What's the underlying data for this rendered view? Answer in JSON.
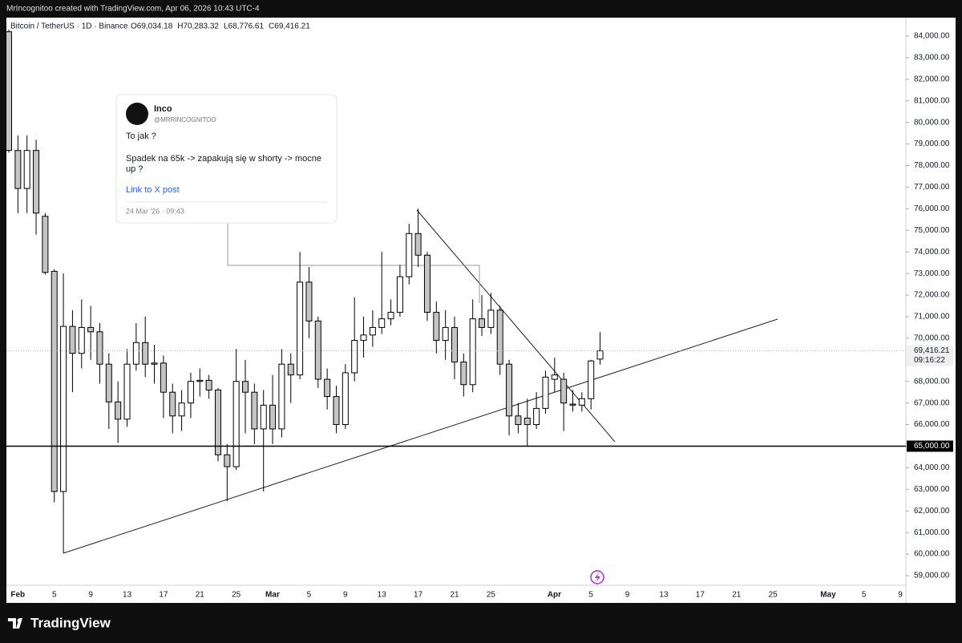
{
  "header": {
    "attribution": "MrIncognitoo created with TradingView.com, Apr 06, 2026 10:43 UTC-4",
    "brand": "TradingView"
  },
  "tweet": {
    "name": "Inco",
    "handle": "@MRRINCOGNITOO",
    "line1": "To jak ?",
    "line2": "Spadek na 65k -> zapakują się w shorty -> mocne",
    "line3": "up ?",
    "link": "Link to X post",
    "timestamp": "24 Mar '26 · 09:43"
  },
  "chart_data": {
    "type": "candlestick",
    "title": "Bitcoin / TetherUS · 1D · Binance",
    "ohlc_labels": [
      "O69,034.18",
      "H70,283.32",
      "L68,776.61",
      "C69,416.21"
    ],
    "up_color": "#ffffff",
    "down_color": "#c4c4c4",
    "wick_color": "#000000",
    "x": [
      "2026-01-31",
      "2026-02-01",
      "2026-02-02",
      "2026-02-03",
      "2026-02-04",
      "2026-02-05",
      "2026-02-06",
      "2026-02-07",
      "2026-02-08",
      "2026-02-09",
      "2026-02-10",
      "2026-02-11",
      "2026-02-12",
      "2026-02-13",
      "2026-02-14",
      "2026-02-15",
      "2026-02-16",
      "2026-02-17",
      "2026-02-18",
      "2026-02-19",
      "2026-02-20",
      "2026-02-21",
      "2026-02-22",
      "2026-02-23",
      "2026-02-24",
      "2026-02-25",
      "2026-02-26",
      "2026-02-27",
      "2026-02-28",
      "2026-03-01",
      "2026-03-02",
      "2026-03-03",
      "2026-03-04",
      "2026-03-05",
      "2026-03-06",
      "2026-03-07",
      "2026-03-08",
      "2026-03-09",
      "2026-03-10",
      "2026-03-11",
      "2026-03-12",
      "2026-03-13",
      "2026-03-14",
      "2026-03-15",
      "2026-03-16",
      "2026-03-17",
      "2026-03-18",
      "2026-03-19",
      "2026-03-20",
      "2026-03-21",
      "2026-03-22",
      "2026-03-23",
      "2026-03-24",
      "2026-03-25",
      "2026-03-26",
      "2026-03-27",
      "2026-03-28",
      "2026-03-29",
      "2026-03-30",
      "2026-03-31",
      "2026-04-01",
      "2026-04-02",
      "2026-04-03",
      "2026-04-04",
      "2026-04-05",
      "2026-04-06"
    ],
    "open": [
      84200,
      78700,
      76940,
      78700,
      75650,
      73100,
      62900,
      70550,
      69300,
      70500,
      70300,
      68800,
      67050,
      66250,
      68800,
      69800,
      68800,
      68850,
      67500,
      66400,
      67000,
      68000,
      68050,
      67600,
      64600,
      64050,
      68000,
      67500,
      65800,
      66900,
      65800,
      68800,
      68300,
      72600,
      70800,
      68100,
      67300,
      66000,
      68400,
      69900,
      70150,
      70500,
      70900,
      71200,
      72850,
      74850,
      73850,
      71200,
      69900,
      70500,
      68900,
      67850,
      70900,
      70500,
      71300,
      68800,
      66400,
      66300,
      66000,
      66750,
      68100,
      68100,
      66950,
      66900,
      67200,
      69034.18
    ],
    "high": [
      84300,
      79400,
      79400,
      79200,
      75800,
      73200,
      73000,
      71300,
      71800,
      71500,
      70700,
      69300,
      68000,
      69500,
      70700,
      71000,
      69700,
      69200,
      67900,
      67600,
      68400,
      68600,
      68300,
      67700,
      65100,
      69500,
      69000,
      67900,
      67600,
      68300,
      69500,
      69300,
      74000,
      73300,
      71000,
      68600,
      67800,
      68800,
      71900,
      71000,
      71300,
      74000,
      71800,
      73400,
      75300,
      76000,
      74000,
      71700,
      71300,
      71000,
      69300,
      71800,
      72000,
      72100,
      71500,
      69000,
      67000,
      67200,
      67500,
      68500,
      69100,
      68400,
      67600,
      67500,
      69000,
      70283.32
    ],
    "low": [
      78600,
      75800,
      75800,
      74800,
      72950,
      62400,
      60050,
      67500,
      68600,
      69000,
      67900,
      65800,
      65150,
      65900,
      68500,
      68200,
      67900,
      66300,
      65600,
      65700,
      66300,
      67300,
      67200,
      64300,
      62450,
      63900,
      65600,
      65100,
      62900,
      65100,
      65400,
      67000,
      68100,
      70000,
      67700,
      66700,
      65600,
      65800,
      68000,
      69100,
      69600,
      70200,
      70600,
      71000,
      72500,
      73300,
      70800,
      69300,
      69000,
      68100,
      67300,
      67500,
      70100,
      70200,
      68300,
      65500,
      65600,
      65000,
      65800,
      66500,
      67500,
      65700,
      66600,
      66600,
      66700,
      68776.61
    ],
    "close": [
      78700,
      76940,
      78700,
      75800,
      73050,
      62900,
      70550,
      69300,
      70500,
      70300,
      68800,
      67050,
      66250,
      68800,
      69800,
      68800,
      68850,
      67500,
      66400,
      67000,
      68000,
      68050,
      67600,
      64600,
      64050,
      68000,
      67500,
      65800,
      66900,
      65800,
      68800,
      68300,
      72600,
      70800,
      68100,
      67300,
      66000,
      68400,
      69900,
      70150,
      70500,
      70900,
      71200,
      72850,
      74850,
      73850,
      71200,
      69900,
      70500,
      68900,
      67850,
      70900,
      70500,
      71300,
      68800,
      66400,
      66000,
      66000,
      66750,
      68200,
      68300,
      67000,
      66900,
      67200,
      68950,
      69416.21
    ],
    "xlim": [
      "2026-01-31",
      "2026-05-09"
    ],
    "xticks": [
      {
        "value": "2026-02-01",
        "label": "Feb"
      },
      {
        "value": "2026-02-05",
        "label": "5"
      },
      {
        "value": "2026-02-09",
        "label": "9"
      },
      {
        "value": "2026-02-13",
        "label": "13"
      },
      {
        "value": "2026-02-17",
        "label": "17"
      },
      {
        "value": "2026-02-21",
        "label": "21"
      },
      {
        "value": "2026-02-25",
        "label": "25"
      },
      {
        "value": "2026-03-01",
        "label": "Mar"
      },
      {
        "value": "2026-03-05",
        "label": "5"
      },
      {
        "value": "2026-03-09",
        "label": "9"
      },
      {
        "value": "2026-03-13",
        "label": "13"
      },
      {
        "value": "2026-03-17",
        "label": "17"
      },
      {
        "value": "2026-03-21",
        "label": "21"
      },
      {
        "value": "2026-03-25",
        "label": "25"
      },
      {
        "value": "2026-04-01",
        "label": "Apr"
      },
      {
        "value": "2026-04-05",
        "label": "5"
      },
      {
        "value": "2026-04-09",
        "label": "9"
      },
      {
        "value": "2026-04-13",
        "label": "13"
      },
      {
        "value": "2026-04-17",
        "label": "17"
      },
      {
        "value": "2026-04-21",
        "label": "21"
      },
      {
        "value": "2026-04-25",
        "label": "25"
      },
      {
        "value": "2026-05-01",
        "label": "May"
      },
      {
        "value": "2026-05-05",
        "label": "5"
      },
      {
        "value": "2026-05-09",
        "label": "9"
      }
    ],
    "ylim": [
      58555,
      84854
    ],
    "yticks": [
      {
        "value": 59000,
        "label": "59,000.00"
      },
      {
        "value": 60000,
        "label": "60,000.00"
      },
      {
        "value": 61000,
        "label": "61,000.00"
      },
      {
        "value": 62000,
        "label": "62,000.00"
      },
      {
        "value": 63000,
        "label": "63,000.00"
      },
      {
        "value": 64000,
        "label": "64,000.00"
      },
      {
        "value": 66000,
        "label": "66,000.00"
      },
      {
        "value": 67000,
        "label": "67,000.00"
      },
      {
        "value": 68000,
        "label": "68,000.00"
      },
      {
        "value": 70000,
        "label": "70,000.00"
      },
      {
        "value": 71000,
        "label": "71,000.00"
      },
      {
        "value": 72000,
        "label": "72,000.00"
      },
      {
        "value": 73000,
        "label": "73,000.00"
      },
      {
        "value": 74000,
        "label": "74,000.00"
      },
      {
        "value": 75000,
        "label": "75,000.00"
      },
      {
        "value": 76000,
        "label": "76,000.00"
      },
      {
        "value": 77000,
        "label": "77,000.00"
      },
      {
        "value": 78000,
        "label": "78,000.00"
      },
      {
        "value": 79000,
        "label": "79,000.00"
      },
      {
        "value": 80000,
        "label": "80,000.00"
      },
      {
        "value": 81000,
        "label": "81,000.00"
      },
      {
        "value": 82000,
        "label": "82,000.00"
      },
      {
        "value": 83000,
        "label": "83,000.00"
      },
      {
        "value": 84000,
        "label": "84,000.00"
      }
    ],
    "horizontal_line": {
      "value": 65000,
      "label": "65,000.00"
    },
    "last_price": {
      "value": 69416.21,
      "label": "69,416.21",
      "countdown": "09:16:22"
    }
  }
}
